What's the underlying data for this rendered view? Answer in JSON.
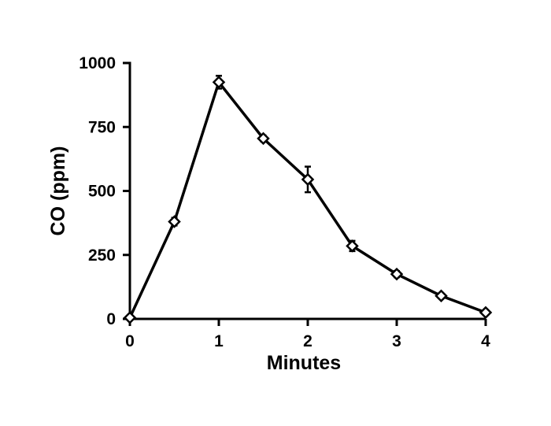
{
  "chart_data": {
    "type": "line",
    "title": "",
    "xlabel": "Minutes",
    "ylabel": "CO (ppm)",
    "xlim": [
      0,
      4
    ],
    "ylim": [
      0,
      1000
    ],
    "x_ticks": [
      0,
      1,
      2,
      3,
      4
    ],
    "y_ticks": [
      0,
      250,
      500,
      750,
      1000
    ],
    "x_tick_labels": [
      "0",
      "1",
      "2",
      "3",
      "4"
    ],
    "y_tick_labels": [
      "0",
      "250",
      "500",
      "750",
      "1000"
    ],
    "grid": false,
    "legend": "none",
    "marker": "open-diamond",
    "line_color": "#000000",
    "series": [
      {
        "x": [
          0,
          0.5,
          1,
          1.5,
          2,
          2.5,
          3,
          3.5,
          4
        ],
        "y": [
          5,
          380,
          925,
          705,
          545,
          285,
          175,
          90,
          25
        ],
        "error": [
          0,
          15,
          25,
          12,
          50,
          20,
          12,
          0,
          0
        ]
      }
    ]
  }
}
